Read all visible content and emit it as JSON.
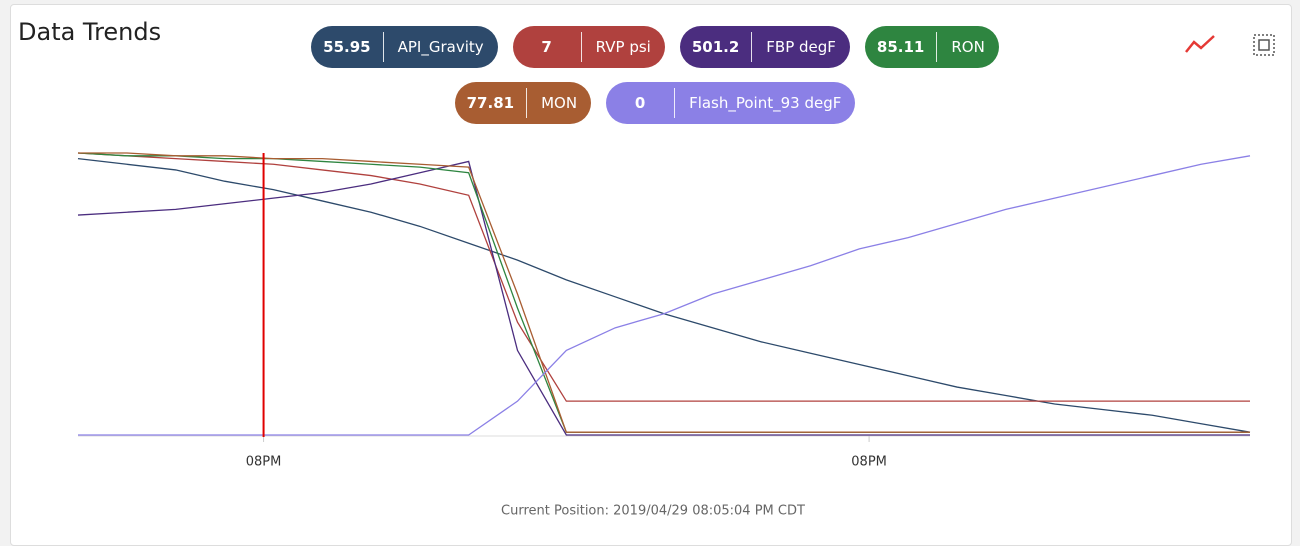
{
  "chart_data": {
    "type": "line",
    "title": "Data Trends",
    "annotation": "Current Position: 2019/04/29 08:05:04 PM CDT",
    "x": [
      0,
      1,
      2,
      3,
      4,
      5,
      6,
      7,
      8,
      9,
      10,
      11,
      12,
      13,
      14,
      15,
      16,
      17,
      18,
      19,
      20,
      21,
      22,
      23,
      24
    ],
    "xlim": [
      0,
      24
    ],
    "ylim": [
      0,
      1
    ],
    "xticks": [
      {
        "value": 3.8,
        "label": "08PM"
      },
      {
        "value": 16.2,
        "label": "08PM"
      }
    ],
    "cursor_x": 3.8,
    "cursor_color": "#e00000",
    "series": [
      {
        "name": "API_Gravity",
        "color": "#2d4a6b",
        "current": 55.95,
        "values": [
          0.98,
          0.96,
          0.94,
          0.9,
          0.87,
          0.83,
          0.79,
          0.74,
          0.68,
          0.62,
          0.55,
          0.49,
          0.43,
          0.38,
          0.33,
          0.29,
          0.25,
          0.21,
          0.17,
          0.14,
          0.11,
          0.09,
          0.07,
          0.04,
          0.01
        ]
      },
      {
        "name": "RVP psi",
        "color": "#b0413e",
        "current": 7,
        "values": [
          1,
          0.99,
          0.98,
          0.97,
          0.96,
          0.94,
          0.92,
          0.89,
          0.85,
          0.4,
          0.12,
          0.12,
          0.12,
          0.12,
          0.12,
          0.12,
          0.12,
          0.12,
          0.12,
          0.12,
          0.12,
          0.12,
          0.12,
          0.12,
          0.12
        ]
      },
      {
        "name": "FBP degF",
        "color": "#4b2d7f",
        "current": 501.2,
        "values": [
          0.78,
          0.79,
          0.8,
          0.82,
          0.84,
          0.86,
          0.89,
          0.93,
          0.97,
          0.3,
          0.0,
          0.0,
          0.0,
          0.0,
          0.0,
          0.0,
          0.0,
          0.0,
          0.0,
          0.0,
          0.0,
          0.0,
          0.0,
          0.0,
          0.0
        ]
      },
      {
        "name": "RON",
        "color": "#2e8540",
        "current": 85.11,
        "values": [
          1,
          0.99,
          0.99,
          0.98,
          0.98,
          0.97,
          0.96,
          0.95,
          0.93,
          0.45,
          0.01,
          0.01,
          0.01,
          0.01,
          0.01,
          0.01,
          0.01,
          0.01,
          0.01,
          0.01,
          0.01,
          0.01,
          0.01,
          0.01,
          0.01
        ]
      },
      {
        "name": "MON",
        "color": "#a85d32",
        "current": 77.81,
        "values": [
          1,
          1,
          0.99,
          0.99,
          0.98,
          0.98,
          0.97,
          0.96,
          0.95,
          0.5,
          0.01,
          0.01,
          0.01,
          0.01,
          0.01,
          0.01,
          0.01,
          0.01,
          0.01,
          0.01,
          0.01,
          0.01,
          0.01,
          0.01,
          0.01
        ]
      },
      {
        "name": "Flash_Point_93 degF",
        "color": "#8b80e6",
        "current": 0,
        "values": [
          0,
          0,
          0,
          0,
          0,
          0,
          0,
          0,
          0,
          0.12,
          0.3,
          0.38,
          0.43,
          0.5,
          0.55,
          0.6,
          0.66,
          0.7,
          0.75,
          0.8,
          0.84,
          0.88,
          0.92,
          0.96,
          0.99
        ]
      }
    ]
  }
}
